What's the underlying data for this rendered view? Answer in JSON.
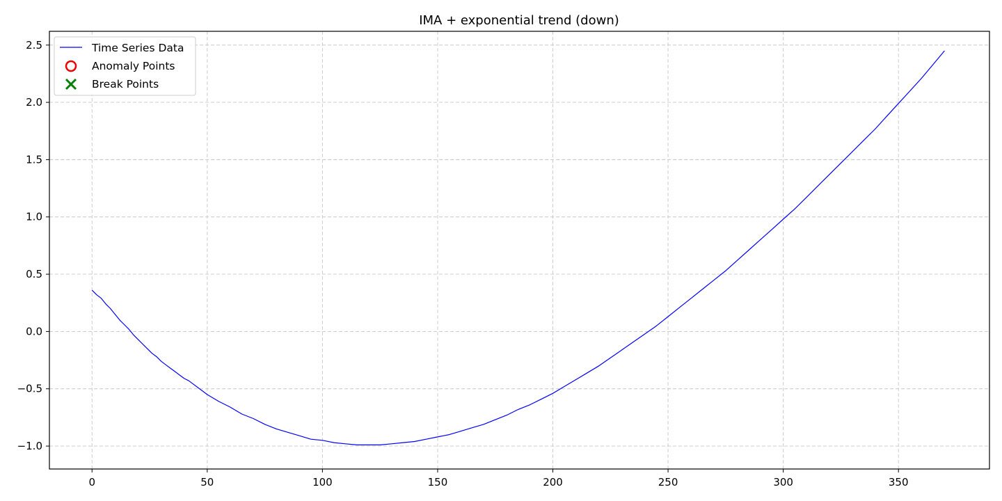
{
  "chart_data": {
    "type": "line",
    "title": "IMA + exponential trend (down)",
    "xlabel": "",
    "ylabel": "",
    "xlim": [
      -18.5,
      389.5
    ],
    "ylim": [
      -1.2,
      2.62
    ],
    "xticks": [
      0,
      50,
      100,
      150,
      200,
      250,
      300,
      350
    ],
    "yticks": [
      -1.0,
      -0.5,
      0.0,
      0.5,
      1.0,
      1.5,
      2.0,
      2.5
    ],
    "xtick_labels": [
      "0",
      "50",
      "100",
      "150",
      "200",
      "250",
      "300",
      "350"
    ],
    "ytick_labels": [
      "−1.0",
      "−0.5",
      "0.0",
      "0.5",
      "1.0",
      "1.5",
      "2.0",
      "2.5"
    ],
    "grid": true,
    "legend_position": "upper-left",
    "legend": [
      {
        "label": "Time Series Data",
        "marker": "line",
        "color": "#0000ff"
      },
      {
        "label": "Anomaly Points",
        "marker": "circle",
        "color": "#ee0000"
      },
      {
        "label": "Break Points",
        "marker": "x",
        "color": "#008000"
      }
    ],
    "series": [
      {
        "name": "Time Series Data",
        "color": "#0000ff",
        "x": [
          0,
          2,
          4,
          6,
          8,
          10,
          12,
          14,
          16,
          18,
          20,
          22,
          24,
          26,
          28,
          30,
          32,
          34,
          36,
          38,
          40,
          42,
          44,
          46,
          48,
          50,
          55,
          60,
          65,
          70,
          75,
          80,
          85,
          90,
          95,
          100,
          105,
          110,
          115,
          120,
          125,
          130,
          135,
          140,
          145,
          150,
          155,
          160,
          165,
          170,
          175,
          180,
          185,
          190,
          195,
          200,
          205,
          210,
          215,
          220,
          225,
          230,
          235,
          240,
          245,
          250,
          255,
          260,
          265,
          270,
          275,
          280,
          285,
          290,
          295,
          300,
          305,
          310,
          315,
          320,
          325,
          330,
          335,
          340,
          345,
          350,
          355,
          360,
          365,
          370
        ],
        "y": [
          0.36,
          0.32,
          0.29,
          0.24,
          0.2,
          0.15,
          0.1,
          0.06,
          0.02,
          -0.03,
          -0.07,
          -0.11,
          -0.15,
          -0.19,
          -0.22,
          -0.26,
          -0.29,
          -0.32,
          -0.35,
          -0.38,
          -0.41,
          -0.43,
          -0.46,
          -0.49,
          -0.52,
          -0.55,
          -0.61,
          -0.66,
          -0.72,
          -0.76,
          -0.81,
          -0.85,
          -0.88,
          -0.91,
          -0.94,
          -0.95,
          -0.97,
          -0.98,
          -0.99,
          -0.99,
          -0.99,
          -0.98,
          -0.97,
          -0.96,
          -0.94,
          -0.92,
          -0.9,
          -0.87,
          -0.84,
          -0.81,
          -0.77,
          -0.73,
          -0.68,
          -0.64,
          -0.59,
          -0.54,
          -0.48,
          -0.42,
          -0.36,
          -0.3,
          -0.23,
          -0.16,
          -0.09,
          -0.02,
          0.05,
          0.13,
          0.21,
          0.29,
          0.37,
          0.45,
          0.53,
          0.62,
          0.71,
          0.8,
          0.89,
          0.98,
          1.07,
          1.17,
          1.27,
          1.37,
          1.47,
          1.57,
          1.67,
          1.77,
          1.88,
          1.99,
          2.1,
          2.21,
          2.33,
          2.45
        ]
      }
    ]
  }
}
